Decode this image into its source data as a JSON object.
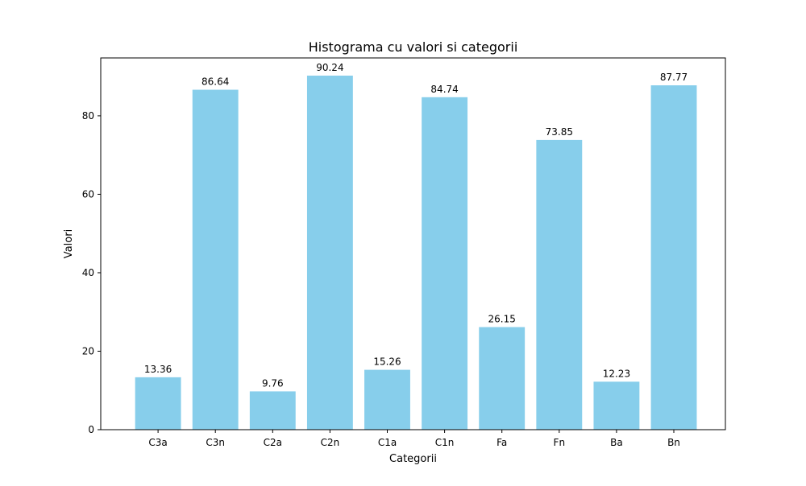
{
  "chart_data": {
    "type": "bar",
    "title": "Histograma cu valori si categorii",
    "xlabel": "Categorii",
    "ylabel": "Valori",
    "categories": [
      "C3a",
      "C3n",
      "C2a",
      "C2n",
      "C1a",
      "C1n",
      "Fa",
      "Fn",
      "Ba",
      "Bn"
    ],
    "values": [
      13.36,
      86.64,
      9.76,
      90.24,
      15.26,
      84.74,
      26.15,
      73.85,
      12.23,
      87.77
    ],
    "value_labels": [
      "13.36",
      "86.64",
      "9.76",
      "90.24",
      "15.26",
      "84.74",
      "26.15",
      "73.85",
      "12.23",
      "87.77"
    ],
    "yticks": [
      0,
      20,
      40,
      60,
      80
    ],
    "ylim": [
      0,
      94.75
    ],
    "grid": false,
    "legend": "none",
    "bar_color": "#87CEEB"
  }
}
